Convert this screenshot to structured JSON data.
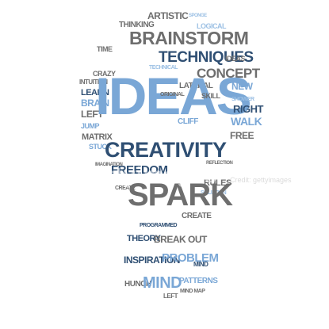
{
  "colors": {
    "gray": "#6e6e6e",
    "blue": "#7aa7d6",
    "navy": "#2f4f73",
    "light": "#9cc0e4"
  },
  "words": {
    "ideas": "IDEAS",
    "creativity": "CREATIVITY",
    "spark": "SPARK",
    "brainstorm": "BRAINSTORM",
    "techniques": "TECHNIQUES",
    "freedom": "FREEDOM",
    "concept": "CONCEPT",
    "artistic": "ARTISTIC",
    "thinking": "THINKING",
    "time": "TIME",
    "logical": "LOGICAL",
    "ideas_small": "IDEAS",
    "crazy": "CRAZY",
    "intuition": "INTUITION",
    "technical": "TECHNICAL",
    "lateral": "LATERAL",
    "new": "NEW",
    "learn": "LEARN",
    "brain": "BRAIN",
    "left": "LEFT",
    "skill": "SKILL",
    "shower": "SHOWER",
    "right": "RIGHT",
    "walk": "WALK",
    "free": "FREE",
    "original": "ORIGINAL",
    "cliff": "CLIFF",
    "jump": "JUMP",
    "matrix": "MATRIX",
    "stuck": "STUCK",
    "create": "CREATE",
    "rules": "RULES",
    "solution": "SOLUTION",
    "programmed": "PROGRAMMED",
    "theory": "THEORY",
    "break_out": "BREAK OUT",
    "inspiration": "INSPIRATION",
    "problem": "PROBLEM",
    "mind": "MIND",
    "mind_map": "MIND MAP",
    "patterns": "PATTERNS",
    "hunch": "HUNCH",
    "mind_small": "MIND",
    "left_small": "LEFT",
    "sponge": "SPONGE",
    "reflection": "REFLECTION",
    "imagination": "IMAGINATION"
  },
  "watermark": {
    "brand": "gettyimages",
    "credit": "Credit: gettyimages"
  }
}
